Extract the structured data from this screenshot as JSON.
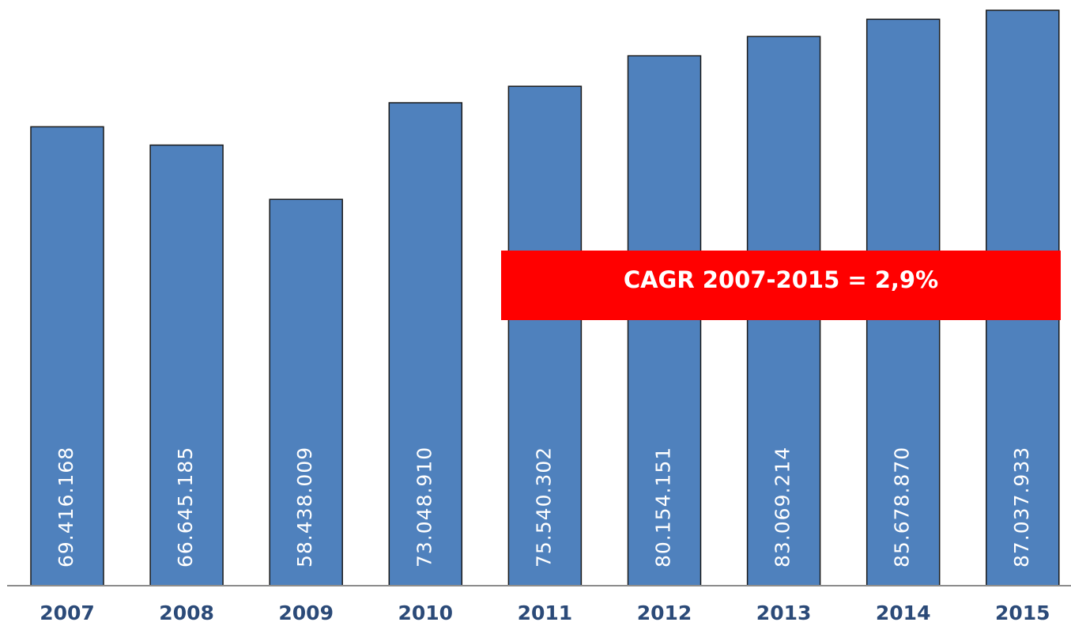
{
  "chart_data": {
    "type": "bar",
    "categories": [
      "2007",
      "2008",
      "2009",
      "2010",
      "2011",
      "2012",
      "2013",
      "2014",
      "2015"
    ],
    "values": [
      69416168,
      66645185,
      58438009,
      73048910,
      75540302,
      80154151,
      83069214,
      85678870,
      87037933
    ],
    "value_labels": [
      "69.416.168",
      "66.645.185",
      "58.438.009",
      "73.048.910",
      "75.540.302",
      "80.154.151",
      "83.069.214",
      "85.678.870",
      "87.037.933"
    ],
    "color": "#4f81bd",
    "annotation": "CAGR 2007-2015 = 2,9%",
    "annotation_color": "#ff0000"
  }
}
